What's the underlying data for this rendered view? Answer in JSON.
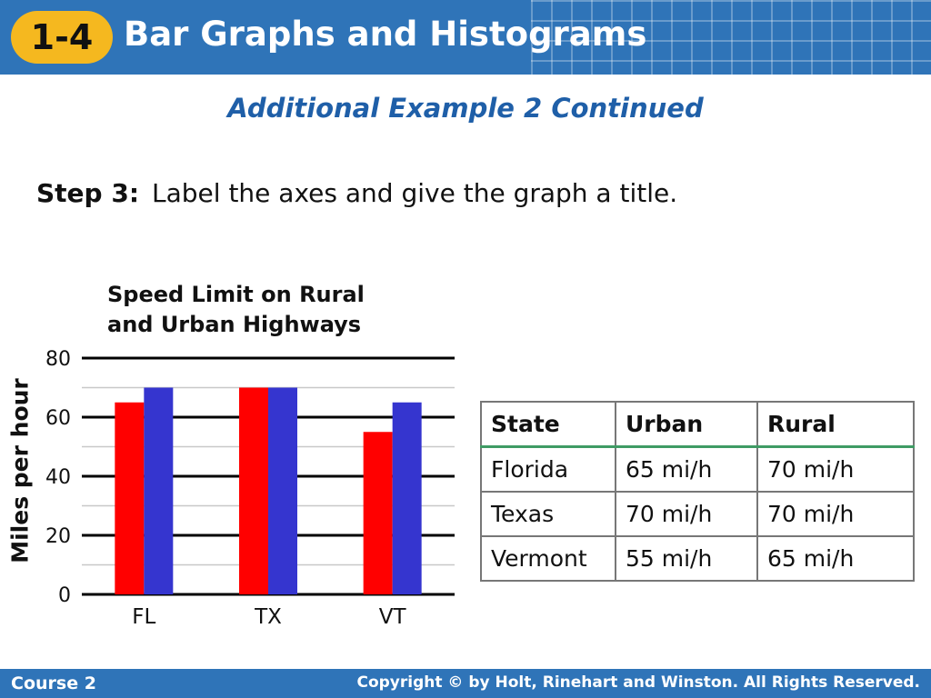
{
  "header": {
    "badge": "1-4",
    "title": "Bar Graphs and Histograms"
  },
  "subtitle": "Additional Example 2 Continued",
  "step": {
    "label": "Step 3:",
    "text": "Label the axes and give the graph a title."
  },
  "chart_data": {
    "type": "bar",
    "title_line1": "Speed Limit on Rural",
    "title_line2": "and Urban Highways",
    "ylabel": "Miles per hour",
    "categories": [
      "FL",
      "TX",
      "VT"
    ],
    "series": [
      {
        "values": [
          65,
          70,
          55
        ],
        "color": "#ff0000"
      },
      {
        "values": [
          70,
          70,
          65
        ],
        "color": "#3535cf"
      }
    ],
    "ylim": [
      0,
      80
    ],
    "yticks": [
      0,
      20,
      40,
      60,
      80
    ],
    "grid": true,
    "legend": "none"
  },
  "table": {
    "headers": [
      "State",
      "Urban",
      "Rural"
    ],
    "rows": [
      [
        "Florida",
        "65 mi/h",
        "70 mi/h"
      ],
      [
        "Texas",
        "70 mi/h",
        "70 mi/h"
      ],
      [
        "Vermont",
        "55 mi/h",
        "65 mi/h"
      ]
    ]
  },
  "footer": {
    "course": "Course 2",
    "copyright": "Copyright © by Holt, Rinehart and Winston. All Rights Reserved."
  }
}
